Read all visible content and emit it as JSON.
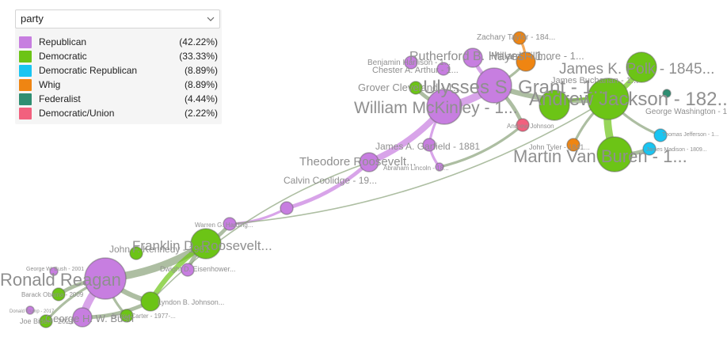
{
  "colors": {
    "Republican": "#c77ee0",
    "Democratic": "#6cc416",
    "Democratic Republican": "#19c5f2",
    "Whig": "#ef8512",
    "Federalist": "#2f8e72",
    "Democratic/Union": "#f2607e"
  },
  "selector": {
    "value": "party",
    "icon": "chevron-down-icon"
  },
  "legend": [
    {
      "party": "Republican",
      "pct": "(42.22%)"
    },
    {
      "party": "Democratic",
      "pct": "(33.33%)"
    },
    {
      "party": "Democratic Republican",
      "pct": "(8.89%)"
    },
    {
      "party": "Whig",
      "pct": "(8.89%)"
    },
    {
      "party": "Federalist",
      "pct": "(4.44%)"
    },
    {
      "party": "Democratic/Union",
      "pct": "(2.22%)"
    }
  ],
  "nodes": [
    {
      "id": "reagan",
      "party": "Republican",
      "size": 6,
      "label": "Ronald Reagan"
    },
    {
      "id": "hwbush",
      "party": "Republican",
      "size": 3,
      "label": "George H. W. Bush"
    },
    {
      "id": "fdr",
      "party": "Democratic",
      "size": 4,
      "label": "Franklin D. Roosevelt..."
    },
    {
      "id": "lbj",
      "party": "Democratic",
      "size": 3,
      "label": "Lyndon B. Johnson..."
    },
    {
      "id": "eisenhower",
      "party": "Republican",
      "size": 2,
      "label": "Dwight D. Eisenhower..."
    },
    {
      "id": "harding",
      "party": "Republican",
      "size": 2,
      "label": "Warren G. Harding..."
    },
    {
      "id": "coolidge",
      "party": "Republican",
      "size": 2,
      "label": "Calvin Coolidge - 19..."
    },
    {
      "id": "troosevelt",
      "party": "Republican",
      "size": 3,
      "label": "Theodore Roosevelt..."
    },
    {
      "id": "garfield",
      "party": "Republican",
      "size": 2,
      "label": "James A. Garfield - 1881"
    },
    {
      "id": "lincoln",
      "party": "Republican",
      "size": 1,
      "label": "Abraham Lincoln - 18..."
    },
    {
      "id": "mckinley",
      "party": "Republican",
      "size": 5,
      "label": "William McKinley - 1..."
    },
    {
      "id": "grant",
      "party": "Republican",
      "size": 5,
      "label": "Ulysses S. Grant - 1..."
    },
    {
      "id": "hayes",
      "party": "Republican",
      "size": 3,
      "label": "Rutherford B. Hayes - 1..."
    },
    {
      "id": "cleveland",
      "party": "Democratic",
      "size": 2,
      "label": "Grover Cleveland - 1..."
    },
    {
      "id": "bharrison",
      "party": "Republican",
      "size": 2,
      "label": "Benjamin Harrison - 1..."
    },
    {
      "id": "arthur",
      "party": "Republican",
      "size": 2,
      "label": "Chester A. Arthur - 1..."
    },
    {
      "id": "ajohnson",
      "party": "Democratic/Union",
      "size": 2,
      "label": "Andrew Johnson"
    },
    {
      "id": "jackson",
      "party": "Democratic",
      "size": 6,
      "label": "Andrew Jackson - 182..."
    },
    {
      "id": "vanburen",
      "party": "Democratic",
      "size": 5,
      "label": "Martin Van Buren - 1..."
    },
    {
      "id": "polk",
      "party": "Democratic",
      "size": 4,
      "label": "James K. Polk - 1845..."
    },
    {
      "id": "buchanan",
      "party": "Democratic",
      "size": 4,
      "label": "James Buchanan - 1..."
    },
    {
      "id": "taylor",
      "party": "Whig",
      "size": 2,
      "label": "Zachary Taylor - 184..."
    },
    {
      "id": "fillmore",
      "party": "Whig",
      "size": 3,
      "label": "Millard Fillmore - 1..."
    },
    {
      "id": "washington",
      "party": "Federalist",
      "size": 1,
      "label": "George Washington - 1..."
    },
    {
      "id": "madison",
      "party": "Democratic Republican",
      "size": 2,
      "label": "James Madison - 1809..."
    },
    {
      "id": "jefferson",
      "party": "Democratic Republican",
      "size": 2,
      "label": "Thomas Jefferson - 1..."
    },
    {
      "id": "tyler",
      "party": "Whig",
      "size": 2,
      "label": "John Tyler - 1841..."
    },
    {
      "id": "biden",
      "party": "Democratic",
      "size": 2,
      "label": "Joe Biden - 2021"
    },
    {
      "id": "obama",
      "party": "Democratic",
      "size": 2,
      "label": "Barack Obama - 2009"
    },
    {
      "id": "carter",
      "party": "Democratic",
      "size": 2,
      "label": "Jimmy Carter - 1977-..."
    },
    {
      "id": "jfk",
      "party": "Democratic",
      "size": 2,
      "label": "John F. Kennedy - 1961"
    },
    {
      "id": "trump",
      "party": "Republican",
      "size": 1,
      "label": "Donald Trump - 2017"
    },
    {
      "id": "gwbush",
      "party": "Republican",
      "size": 1,
      "label": "George W. Bush - 2001"
    }
  ],
  "edges": [
    [
      "reagan",
      "hwbush",
      6
    ],
    [
      "reagan",
      "fdr",
      6
    ],
    [
      "reagan",
      "lbj",
      4
    ],
    [
      "reagan",
      "obama",
      3
    ],
    [
      "reagan",
      "biden",
      2
    ],
    [
      "fdr",
      "lbj",
      4
    ],
    [
      "fdr",
      "eisenhower",
      3
    ],
    [
      "fdr",
      "harding",
      3
    ],
    [
      "harding",
      "coolidge",
      2
    ],
    [
      "coolidge",
      "troosevelt",
      3
    ],
    [
      "troosevelt",
      "mckinley",
      5
    ],
    [
      "mckinley",
      "grant",
      6
    ],
    [
      "grant",
      "jackson",
      4
    ],
    [
      "jackson",
      "vanburen",
      6
    ],
    [
      "jackson",
      "polk",
      4
    ],
    [
      "mckinley",
      "garfield",
      2
    ],
    [
      "garfield",
      "lincoln",
      2
    ],
    [
      "lincoln",
      "ajohnson",
      2
    ],
    [
      "ajohnson",
      "grant",
      3
    ],
    [
      "hayes",
      "grant",
      3
    ],
    [
      "cleveland",
      "mckinley",
      3
    ],
    [
      "grant",
      "fillmore",
      2
    ],
    [
      "vanburen",
      "madison",
      3
    ],
    [
      "jackson",
      "jefferson",
      2
    ],
    [
      "jackson",
      "buchanan",
      2
    ],
    [
      "fillmore",
      "taylor",
      2
    ],
    [
      "jackson",
      "tyler",
      2
    ],
    [
      "reagan",
      "carter",
      2
    ],
    [
      "hwbush",
      "lbj",
      3
    ],
    [
      "troosevelt",
      "lbj",
      1
    ],
    [
      "harding",
      "jackson",
      1
    ]
  ]
}
